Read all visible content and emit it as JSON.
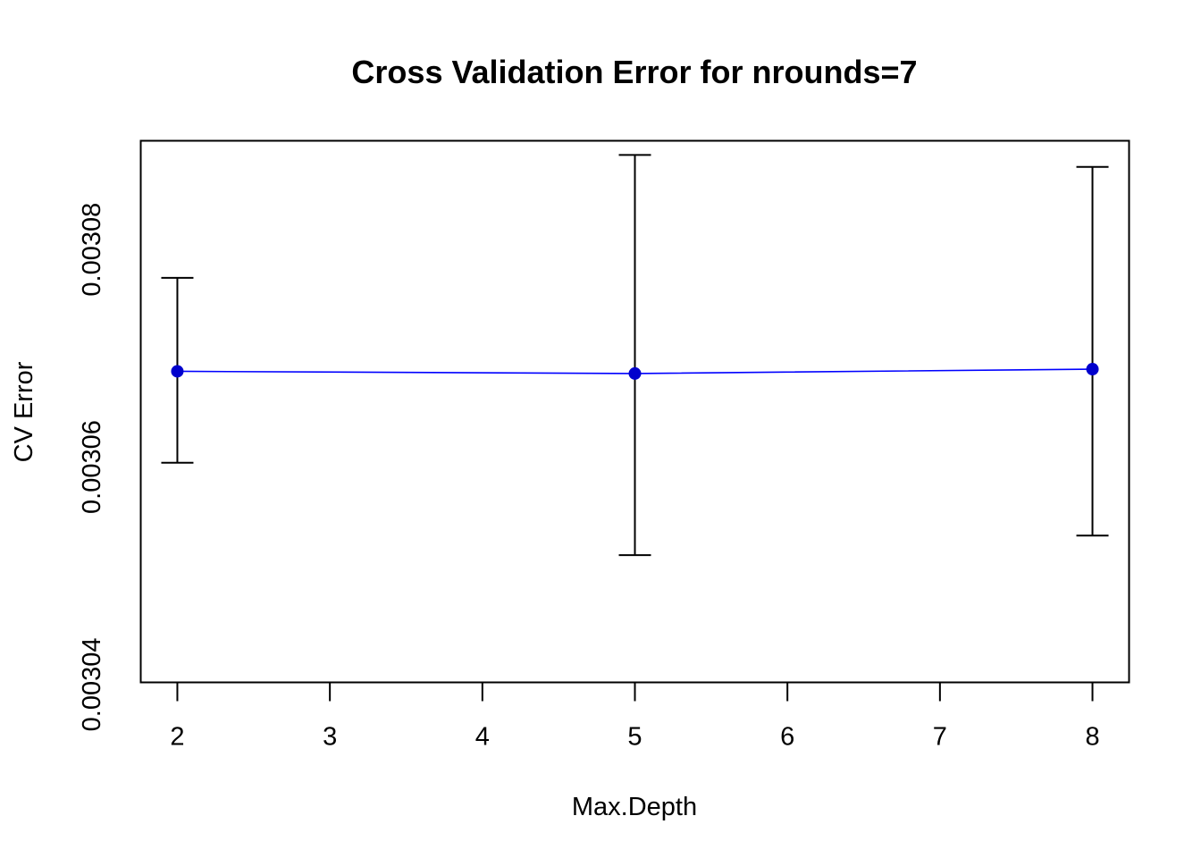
{
  "chart_data": {
    "type": "line",
    "title": "Cross Validation Error for nrounds=7",
    "xlabel": "Max.Depth",
    "ylabel": "CV Error",
    "x": [
      2,
      5,
      8
    ],
    "series": [
      {
        "values": [
          0.0030688,
          0.0030686,
          0.003069
        ],
        "lower": [
          0.0030604,
          0.0030519,
          0.0030537
        ],
        "upper": [
          0.0030774,
          0.0030887,
          0.0030876
        ],
        "color": "#0000ff",
        "point_color": "#0000cd"
      }
    ],
    "xticks": [
      "2",
      "3",
      "4",
      "5",
      "6",
      "7",
      "8"
    ],
    "yticks": [
      "0.00304",
      "0.00306",
      "0.00308"
    ],
    "xlim": [
      1.76,
      8.24
    ],
    "ylim": [
      0.0030402,
      0.00309
    ],
    "grid": false,
    "legend": "none"
  }
}
